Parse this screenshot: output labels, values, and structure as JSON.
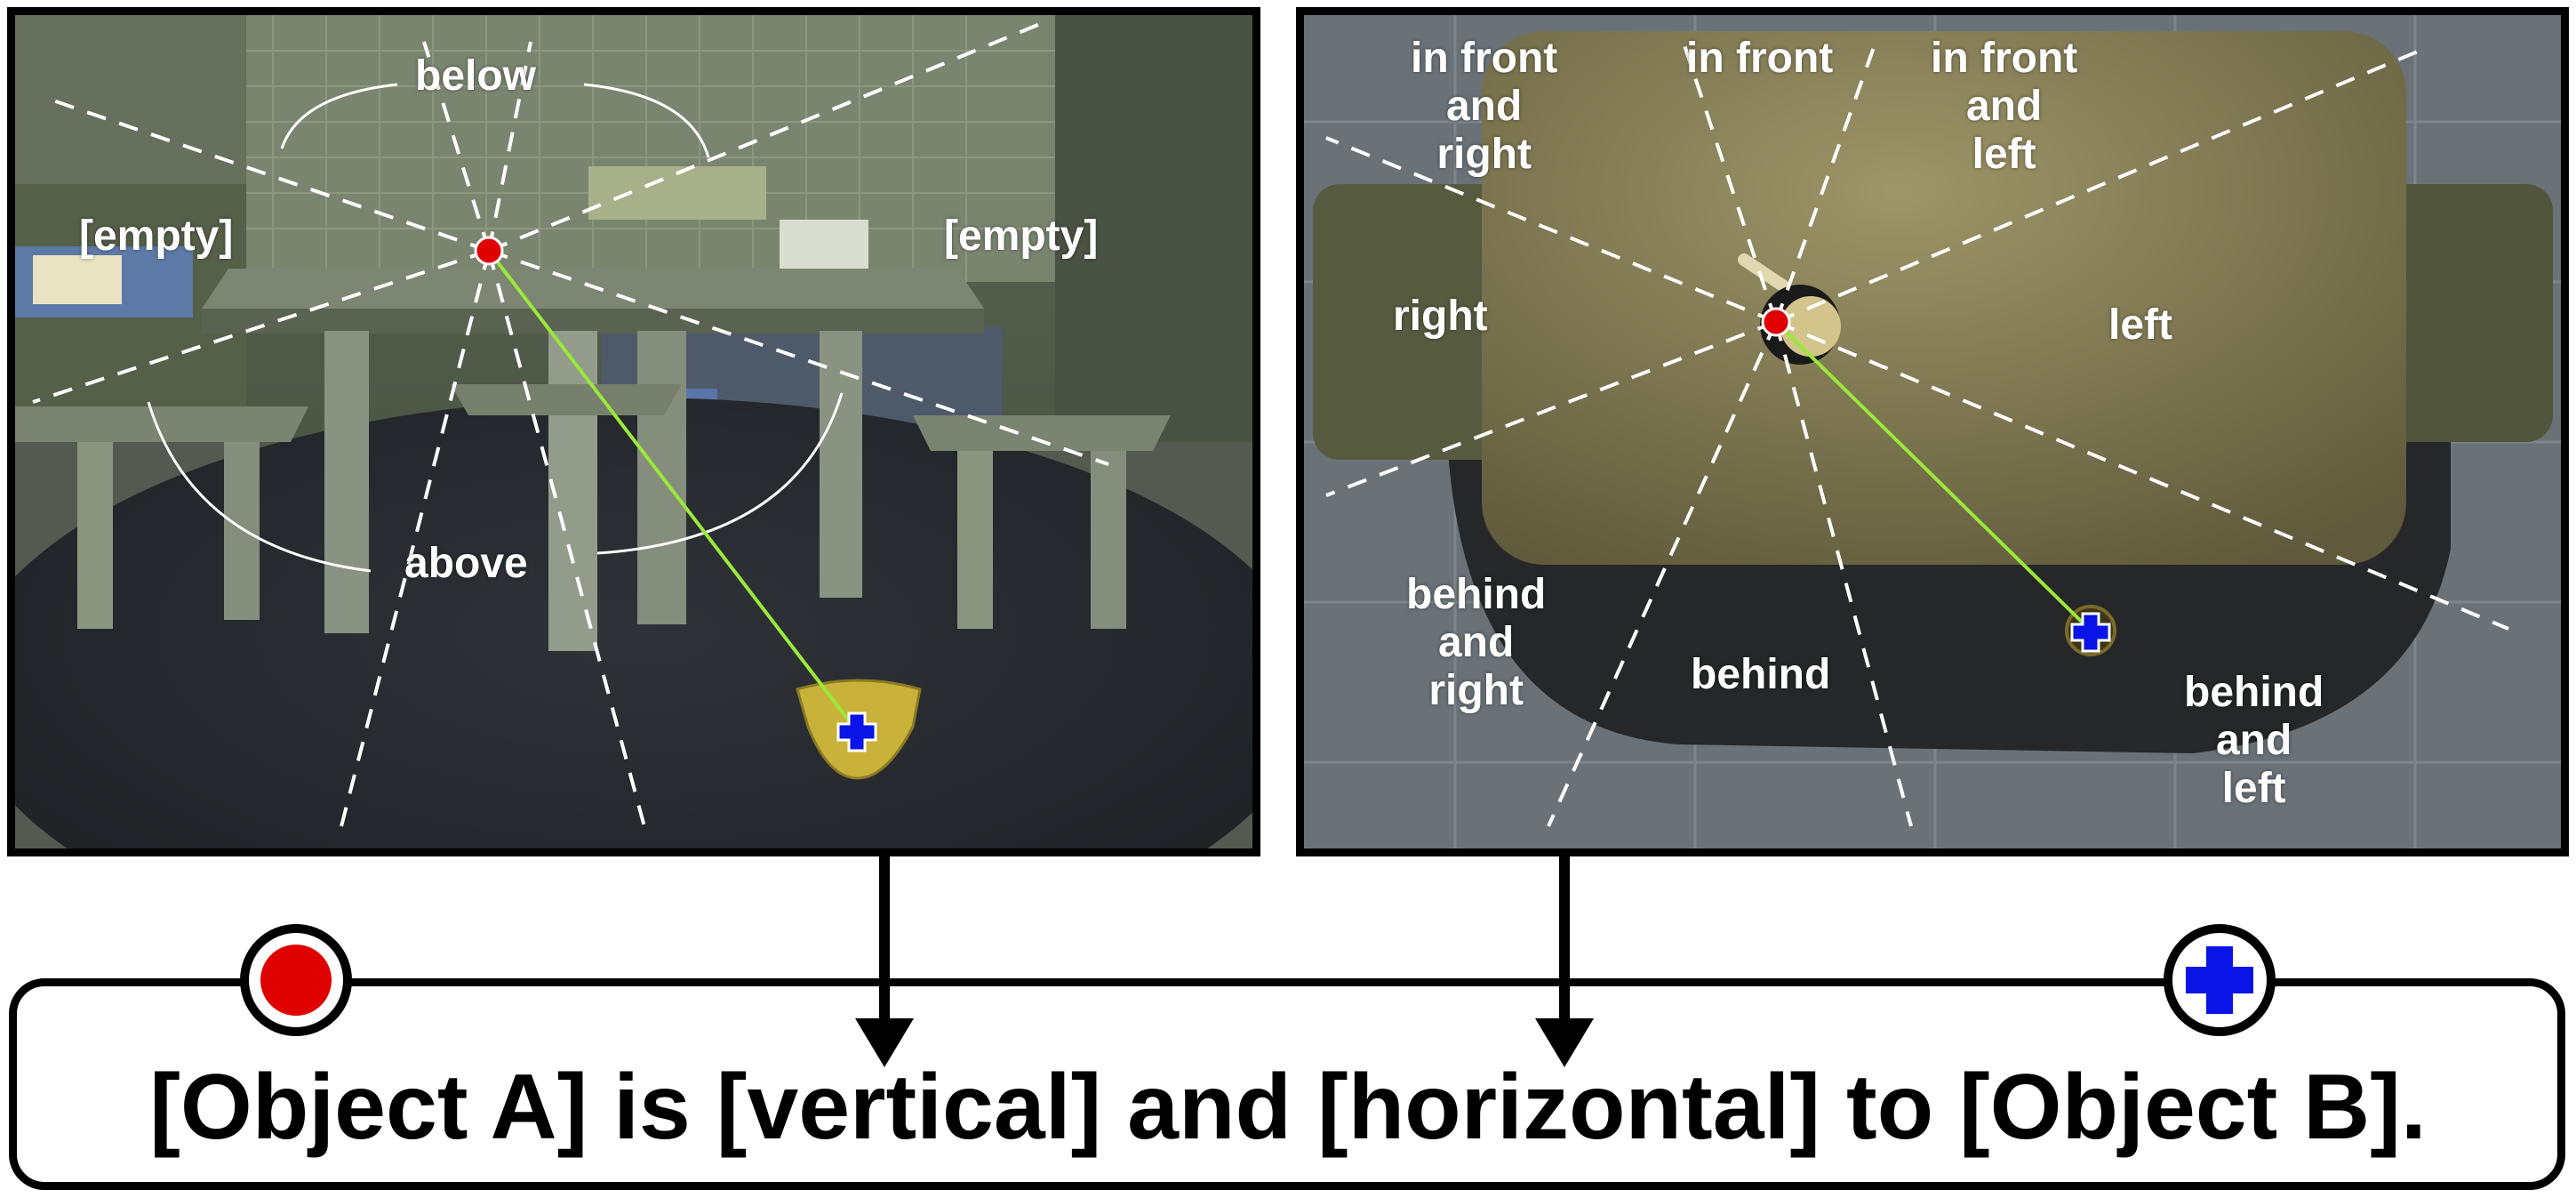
{
  "vertical_view": {
    "labels": {
      "below": "below",
      "above": "above",
      "left_empty": "[empty]",
      "right_empty": "[empty]"
    }
  },
  "horizontal_view": {
    "labels": {
      "front": "in front",
      "front_right": [
        "in front",
        "and",
        "right"
      ],
      "front_left": [
        "in front",
        "and",
        "left"
      ],
      "right": "right",
      "left": "left",
      "behind": "behind",
      "behind_right": [
        "behind",
        "and",
        "right"
      ],
      "behind_left": [
        "behind",
        "and",
        "left"
      ]
    }
  },
  "sentence": "[Object A] is [vertical] and [horizontal] to [Object B].",
  "colors": {
    "object_a_marker": "#e00000",
    "object_b_marker": "#0a14e6",
    "connector_line": "#9be83a",
    "border": "#000000"
  }
}
